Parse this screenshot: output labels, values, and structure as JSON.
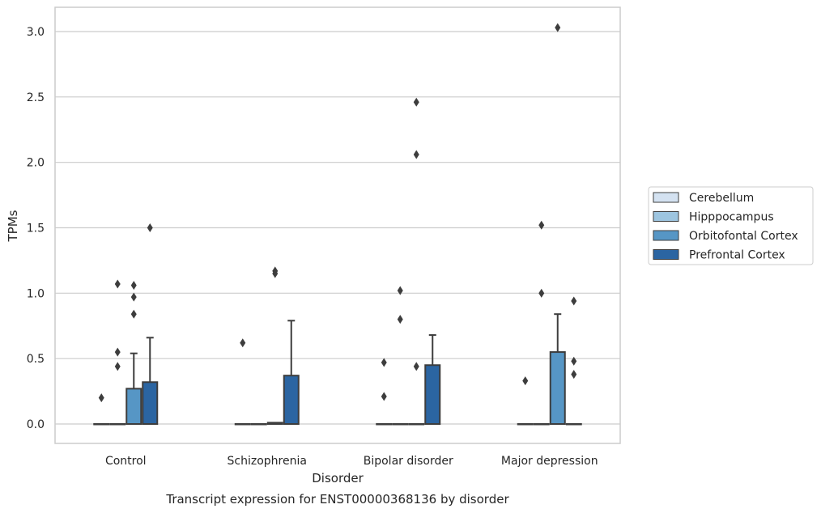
{
  "chart_data": {
    "type": "box",
    "title": "",
    "caption": "Transcript expression for ENST00000368136 by disorder",
    "xlabel": "Disorder",
    "ylabel": "TPMs",
    "ylim": [
      -0.15,
      3.2
    ],
    "yticks": [
      "0.0",
      "0.5",
      "1.0",
      "1.5",
      "2.0",
      "2.5",
      "3.0"
    ],
    "ytick_values": [
      0.0,
      0.5,
      1.0,
      1.5,
      2.0,
      2.5,
      3.0
    ],
    "grid": "horizontal",
    "legend_position": "right",
    "categories": [
      "Control",
      "Schizophrenia",
      "Bipolar disorder",
      "Major depression"
    ],
    "series": [
      {
        "name": "Cerebellum",
        "color": "#d4e2f1",
        "boxes": [
          {
            "q1": 0,
            "median": 0,
            "q3": 0,
            "whislo": 0,
            "whishi": 0,
            "fliers": [
              0.2
            ]
          },
          {
            "q1": 0,
            "median": 0,
            "q3": 0,
            "whislo": 0,
            "whishi": 0,
            "fliers": [
              0.62
            ]
          },
          {
            "q1": 0,
            "median": 0,
            "q3": 0,
            "whislo": 0,
            "whishi": 0,
            "fliers": [
              0.47,
              0.21
            ]
          },
          {
            "q1": 0,
            "median": 0,
            "q3": 0,
            "whislo": 0,
            "whishi": 0,
            "fliers": [
              0.33
            ]
          }
        ]
      },
      {
        "name": "Hipppocampus",
        "color": "#9dc5e0",
        "boxes": [
          {
            "q1": 0,
            "median": 0,
            "q3": 0,
            "whislo": 0,
            "whishi": 0,
            "fliers": [
              1.07,
              0.55,
              0.44
            ]
          },
          {
            "q1": 0,
            "median": 0,
            "q3": 0,
            "whislo": 0,
            "whishi": 0,
            "fliers": []
          },
          {
            "q1": 0,
            "median": 0,
            "q3": 0,
            "whislo": 0,
            "whishi": 0,
            "fliers": [
              1.02,
              0.8
            ]
          },
          {
            "q1": 0,
            "median": 0,
            "q3": 0,
            "whislo": 0,
            "whishi": 0,
            "fliers": [
              1.52,
              1.0
            ]
          }
        ]
      },
      {
        "name": "Orbitofontal Cortex",
        "color": "#5696c5",
        "boxes": [
          {
            "q1": 0,
            "median": 0,
            "q3": 0.27,
            "whislo": 0,
            "whishi": 0.54,
            "fliers": [
              1.06,
              0.97,
              0.84
            ]
          },
          {
            "q1": 0,
            "median": 0,
            "q3": 0.01,
            "whislo": 0,
            "whishi": 0.01,
            "fliers": [
              1.17,
              1.15
            ]
          },
          {
            "q1": 0,
            "median": 0,
            "q3": 0,
            "whislo": 0,
            "whishi": 0,
            "fliers": [
              2.46,
              2.06,
              0.44
            ]
          },
          {
            "q1": 0,
            "median": 0,
            "q3": 0.55,
            "whislo": 0,
            "whishi": 0.84,
            "fliers": [
              3.03
            ]
          }
        ]
      },
      {
        "name": "Prefrontal Cortex",
        "color": "#2b65a2",
        "boxes": [
          {
            "q1": 0,
            "median": 0,
            "q3": 0.32,
            "whislo": 0,
            "whishi": 0.66,
            "fliers": [
              1.5
            ]
          },
          {
            "q1": 0,
            "median": 0,
            "q3": 0.37,
            "whislo": 0,
            "whishi": 0.79,
            "fliers": []
          },
          {
            "q1": 0,
            "median": 0,
            "q3": 0.45,
            "whislo": 0,
            "whishi": 0.68,
            "fliers": []
          },
          {
            "q1": 0,
            "median": 0,
            "q3": 0,
            "whislo": 0,
            "whishi": 0,
            "fliers": [
              0.94,
              0.48,
              0.38
            ]
          }
        ]
      }
    ]
  }
}
